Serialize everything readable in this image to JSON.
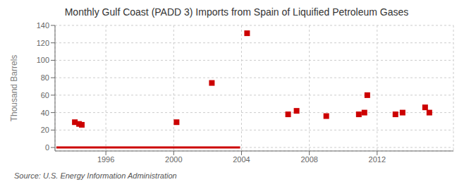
{
  "chart_data": {
    "type": "scatter",
    "title": "Monthly Gulf Coast (PADD 3) Imports from Spain of Liquified Petroleum Gases",
    "ylabel": "Thousand Barrels",
    "annotation": "Source: U.S. Energy Information Administration",
    "xlim": [
      1993.0,
      2016.5
    ],
    "ylim": [
      -4,
      140
    ],
    "xticks": [
      1996,
      2000,
      2004,
      2008,
      2012
    ],
    "yticks": [
      0,
      20,
      40,
      60,
      80,
      100,
      120,
      140
    ],
    "grid": true,
    "series": [
      {
        "type": "line",
        "line_style": "solid",
        "color": "#cc0000",
        "x": [
          1993.08,
          2003.92
        ],
        "values": [
          0,
          0
        ]
      },
      {
        "type": "scatter",
        "marker": "square",
        "color": "#cc0000",
        "x": [
          1994.17,
          1994.42,
          1994.58,
          2000.17,
          2002.25,
          2004.33,
          2006.75,
          2007.25,
          2009.0,
          2010.92,
          2011.25,
          2011.42,
          2013.08,
          2013.5,
          2014.83,
          2015.08
        ],
        "values": [
          29,
          27,
          26,
          29,
          74,
          131,
          38,
          42,
          36,
          38,
          40,
          60,
          38,
          40,
          46,
          40
        ]
      }
    ]
  }
}
